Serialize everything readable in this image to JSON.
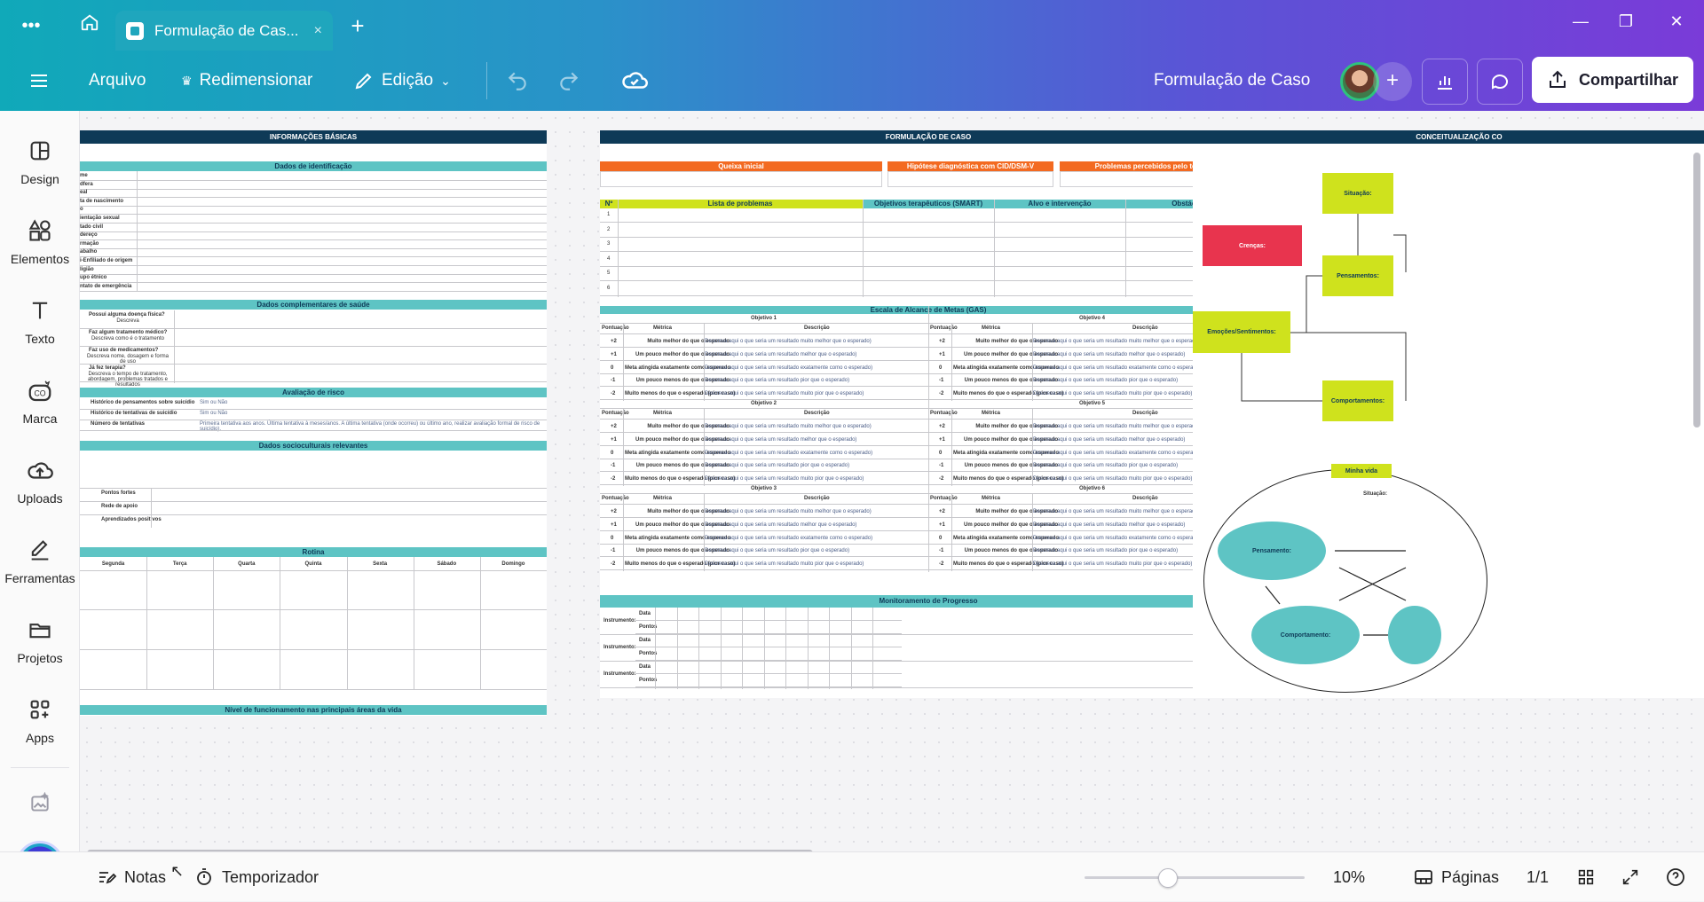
{
  "browser": {
    "tab_title": "Formulação de Cas...",
    "tab_close": "×",
    "new_tab": "+",
    "menu_dots": "•••"
  },
  "toolbar": {
    "file": "Arquivo",
    "resize": "Redimensionar",
    "edit": "Edição",
    "document_title": "Formulação de Caso",
    "share": "Compartilhar"
  },
  "sidebar": {
    "items": [
      {
        "label": "Design",
        "icon": "layout-icon"
      },
      {
        "label": "Elementos",
        "icon": "shapes-icon"
      },
      {
        "label": "Texto",
        "icon": "text-icon"
      },
      {
        "label": "Marca",
        "icon": "brand-icon"
      },
      {
        "label": "Uploads",
        "icon": "cloud-upload-icon"
      },
      {
        "label": "Ferramentas",
        "icon": "pen-icon"
      },
      {
        "label": "Projetos",
        "icon": "folder-icon"
      },
      {
        "label": "Apps",
        "icon": "apps-icon"
      }
    ]
  },
  "bottom": {
    "notes": "Notas",
    "timer": "Temporizador",
    "zoom": "10%",
    "pages_label": "Páginas",
    "page_count": "1/1",
    "zoom_level": 0.38
  },
  "board": {
    "basic_info": {
      "title": "INFORMAÇÕES BÁSICAS",
      "identification": "Dados de identificação",
      "id_fields": [
        "me",
        "dfera",
        "eal",
        "ta de nascimento",
        "o",
        "ientação sexual",
        "tado civil",
        "dereço",
        "rmação",
        "abalho",
        "i-Enfiliado de origem",
        "ligião",
        "upo étnico",
        "ntato de emergência"
      ],
      "health": "Dados complementares de saúde",
      "health_rows": [
        {
          "q": "Possui alguma doença física?",
          "a": "Descreva"
        },
        {
          "q": "Faz algum tratamento médico?",
          "a": "Descreva como é o tratamento"
        },
        {
          "q": "Faz uso de medicamentos?",
          "a": "Descreva nome, dosagem e forma de uso"
        },
        {
          "q": "Já fez terapia?",
          "a": "Descreva o tempo de tratamento, abordagem, problemas tratados e resultados"
        }
      ],
      "risk": "Avaliação de risco",
      "risk_rows": [
        {
          "q": "Histórico de pensamentos sobre suicídio",
          "a": "Sim ou Não"
        },
        {
          "q": "Histórico de tentativas de suicídio",
          "a": "Sim ou Não"
        },
        {
          "q": "Número de tentativas",
          "a": "Primeira tentativa aos       anos. Última tentativa à       meses/anos. A última tentativa (onde ocorreu) ou último ano, realizar avaliação formal de risco de suicídio)."
        }
      ],
      "sociocultural": "Dados socioculturais relevantes",
      "socio_rows": [
        "Pontos fortes",
        "Rede de apoio",
        "Aprendizados positivos"
      ],
      "routine": "Rotina",
      "days": [
        "Segunda",
        "Terça",
        "Quarta",
        "Quinta",
        "Sexta",
        "Sábado",
        "Domingo"
      ],
      "functioning": "Nível de funcionamento nas principais áreas da vida"
    },
    "formulation": {
      "title": "FORMULAÇÃO DE CASO",
      "top_boxes": [
        "Queixa inicial",
        "Hipótese diagnóstica com CID/DSM-V",
        "Problemas percebidos pelo terapeuta"
      ],
      "problem_headers": [
        "Nº",
        "Lista de problemas",
        "Objetivos terapêuticos (SMART)",
        "Alvo e intervenção",
        "Obstáculos"
      ],
      "problem_numbers": [
        "1",
        "2",
        "3",
        "4",
        "5",
        "6"
      ],
      "gas_title": "Escala de Alcance de Metas (GAS)",
      "objectives": [
        "Objetivo 1",
        "Objetivo 2",
        "Objetivo 3",
        "Objetivo 4",
        "Objetivo 5",
        "Objetivo 6"
      ],
      "gas_headers": [
        "Pontuação",
        "Métrica",
        "Descrição"
      ],
      "gas_scores": [
        "+2",
        "+1",
        "0",
        "-1",
        "-2"
      ],
      "gas_metrics": [
        "Muito melhor do que o esperado",
        "Um pouco melhor do que o esperado",
        "Meta atingida exatamente como esperado",
        "Um pouco menos do que o esperado",
        "Muito menos do que o esperado (pior caso)"
      ],
      "gas_descriptions": [
        "Descreva aqui o que seria um resultado muito melhor que o esperado)",
        "Descreva aqui o que seria um resultado melhor que o esperado)",
        "Descreva aqui o que seria um resultado exatamente como o esperado)",
        "Descreva aqui o que seria um resultado pior que o esperado)",
        "Descreva aqui o que seria um resultado muito pior que o esperado)"
      ],
      "monitoring_title": "Monitoramento de Progresso",
      "monitoring_rows": [
        {
          "instrument": "Instrumento:",
          "sub": [
            "Data",
            "Pontos"
          ]
        },
        {
          "instrument": "Instrumento:",
          "sub": [
            "Data",
            "Pontos"
          ]
        },
        {
          "instrument": "Instrumento:",
          "sub": [
            "Data",
            "Pontos"
          ]
        }
      ]
    },
    "conceptualization": {
      "title": "CONCEITUALIZAÇÃO CO",
      "boxes": [
        "Situação:",
        "Crenças:",
        "Pensamentos:",
        "Emoções/Sentimentos:",
        "Comportamentos:"
      ],
      "mini_label": "Minha vida",
      "mini_situation": "Situação:",
      "ellipses": [
        "Pensamento:",
        "Comportamento:"
      ]
    }
  },
  "colors": {
    "navy": "#0e3a57",
    "teal": "#5ec4c4",
    "orange": "#f36a21",
    "lime": "#cfe21d",
    "crimson": "#e8344e"
  }
}
